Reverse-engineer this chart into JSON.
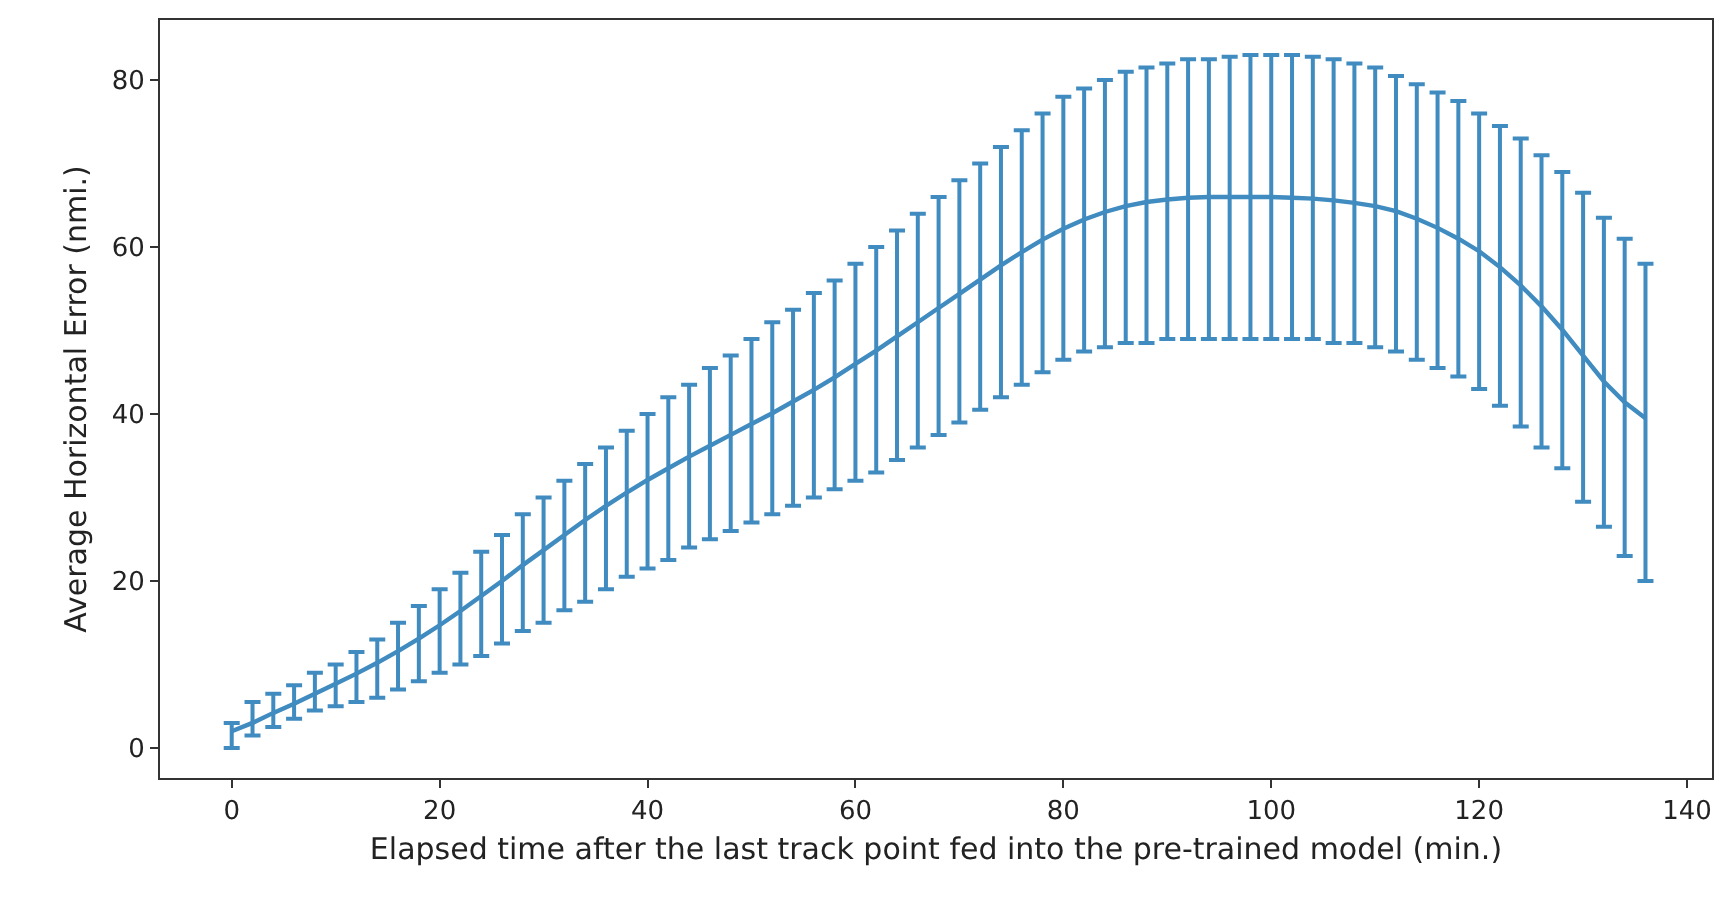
{
  "chart_data": {
    "type": "line",
    "xlabel": "Elapsed time after the last track point fed into the pre-trained model (min.)",
    "ylabel": "Average Horizontal Error (nmi.)",
    "x": [
      0,
      2,
      4,
      6,
      8,
      10,
      12,
      14,
      16,
      18,
      20,
      22,
      24,
      26,
      28,
      30,
      32,
      34,
      36,
      38,
      40,
      42,
      44,
      46,
      48,
      50,
      52,
      54,
      56,
      58,
      60,
      62,
      64,
      66,
      68,
      70,
      72,
      74,
      76,
      78,
      80,
      82,
      84,
      86,
      88,
      90,
      92,
      94,
      96,
      98,
      100,
      102,
      104,
      106,
      108,
      110,
      112,
      114,
      116,
      118,
      120,
      122,
      124,
      126,
      128,
      130,
      132,
      134,
      136
    ],
    "series": [
      {
        "color": "#1f77b4",
        "values": [
          2,
          3,
          4.2,
          5.3,
          6.5,
          7.7,
          8.9,
          10.2,
          11.6,
          13.1,
          14.7,
          16.4,
          18.2,
          20,
          21.9,
          23.7,
          25.5,
          27.3,
          29,
          30.6,
          32.1,
          33.5,
          34.9,
          36.2,
          37.5,
          38.8,
          40.1,
          41.5,
          42.9,
          44.4,
          46,
          47.6,
          49.3,
          51,
          52.7,
          54.4,
          56.1,
          57.8,
          59.4,
          60.9,
          62.2,
          63.3,
          64.2,
          64.9,
          65.4,
          65.7,
          65.9,
          66,
          66,
          66,
          66,
          65.9,
          65.8,
          65.6,
          65.3,
          64.9,
          64.3,
          63.4,
          62.3,
          61,
          59.5,
          57.6,
          55.4,
          52.9,
          50.1,
          47,
          43.9,
          41.4,
          39.5
        ],
        "errors": [
          [
            0,
            3
          ],
          [
            1.5,
            5.5
          ],
          [
            2.5,
            6.5
          ],
          [
            3.5,
            7.5
          ],
          [
            4.5,
            9
          ],
          [
            5,
            10
          ],
          [
            5.5,
            11.5
          ],
          [
            6,
            13
          ],
          [
            7,
            15
          ],
          [
            8,
            17
          ],
          [
            9,
            19
          ],
          [
            10,
            21
          ],
          [
            11,
            23.5
          ],
          [
            12.5,
            25.5
          ],
          [
            14,
            28
          ],
          [
            15,
            30
          ],
          [
            16.5,
            32
          ],
          [
            17.5,
            34
          ],
          [
            19,
            36
          ],
          [
            20.5,
            38
          ],
          [
            21.5,
            40
          ],
          [
            22.5,
            42
          ],
          [
            24,
            43.5
          ],
          [
            25,
            45.5
          ],
          [
            26,
            47
          ],
          [
            27,
            49
          ],
          [
            28,
            51
          ],
          [
            29,
            52.5
          ],
          [
            30,
            54.5
          ],
          [
            31,
            56
          ],
          [
            32,
            58
          ],
          [
            33,
            60
          ],
          [
            34.5,
            62
          ],
          [
            36,
            64
          ],
          [
            37.5,
            66
          ],
          [
            39,
            68
          ],
          [
            40.5,
            70
          ],
          [
            42,
            72
          ],
          [
            43.5,
            74
          ],
          [
            45,
            76
          ],
          [
            46.5,
            78
          ],
          [
            47.5,
            79
          ],
          [
            48,
            80
          ],
          [
            48.5,
            81
          ],
          [
            48.5,
            81.5
          ],
          [
            49,
            82
          ],
          [
            49,
            82.5
          ],
          [
            49,
            82.5
          ],
          [
            49,
            82.8
          ],
          [
            49,
            83
          ],
          [
            49,
            83
          ],
          [
            49,
            83
          ],
          [
            49,
            82.8
          ],
          [
            48.5,
            82.5
          ],
          [
            48.5,
            82
          ],
          [
            48,
            81.5
          ],
          [
            47.5,
            80.5
          ],
          [
            46.5,
            79.5
          ],
          [
            45.5,
            78.5
          ],
          [
            44.5,
            77.5
          ],
          [
            43,
            76
          ],
          [
            41,
            74.5
          ],
          [
            38.5,
            73
          ],
          [
            36,
            71
          ],
          [
            33.5,
            69
          ],
          [
            29.5,
            66.5
          ],
          [
            26.5,
            63.5
          ],
          [
            23,
            61
          ],
          [
            20,
            58
          ]
        ]
      }
    ],
    "xlim": [
      -6.9,
      142.4
    ],
    "ylim": [
      -3.6,
      87.2
    ],
    "xticks": [
      0,
      20,
      40,
      60,
      80,
      100,
      120,
      140
    ],
    "yticks": [
      0,
      20,
      40,
      60,
      80
    ],
    "marker": "none",
    "line_style": "solid"
  }
}
